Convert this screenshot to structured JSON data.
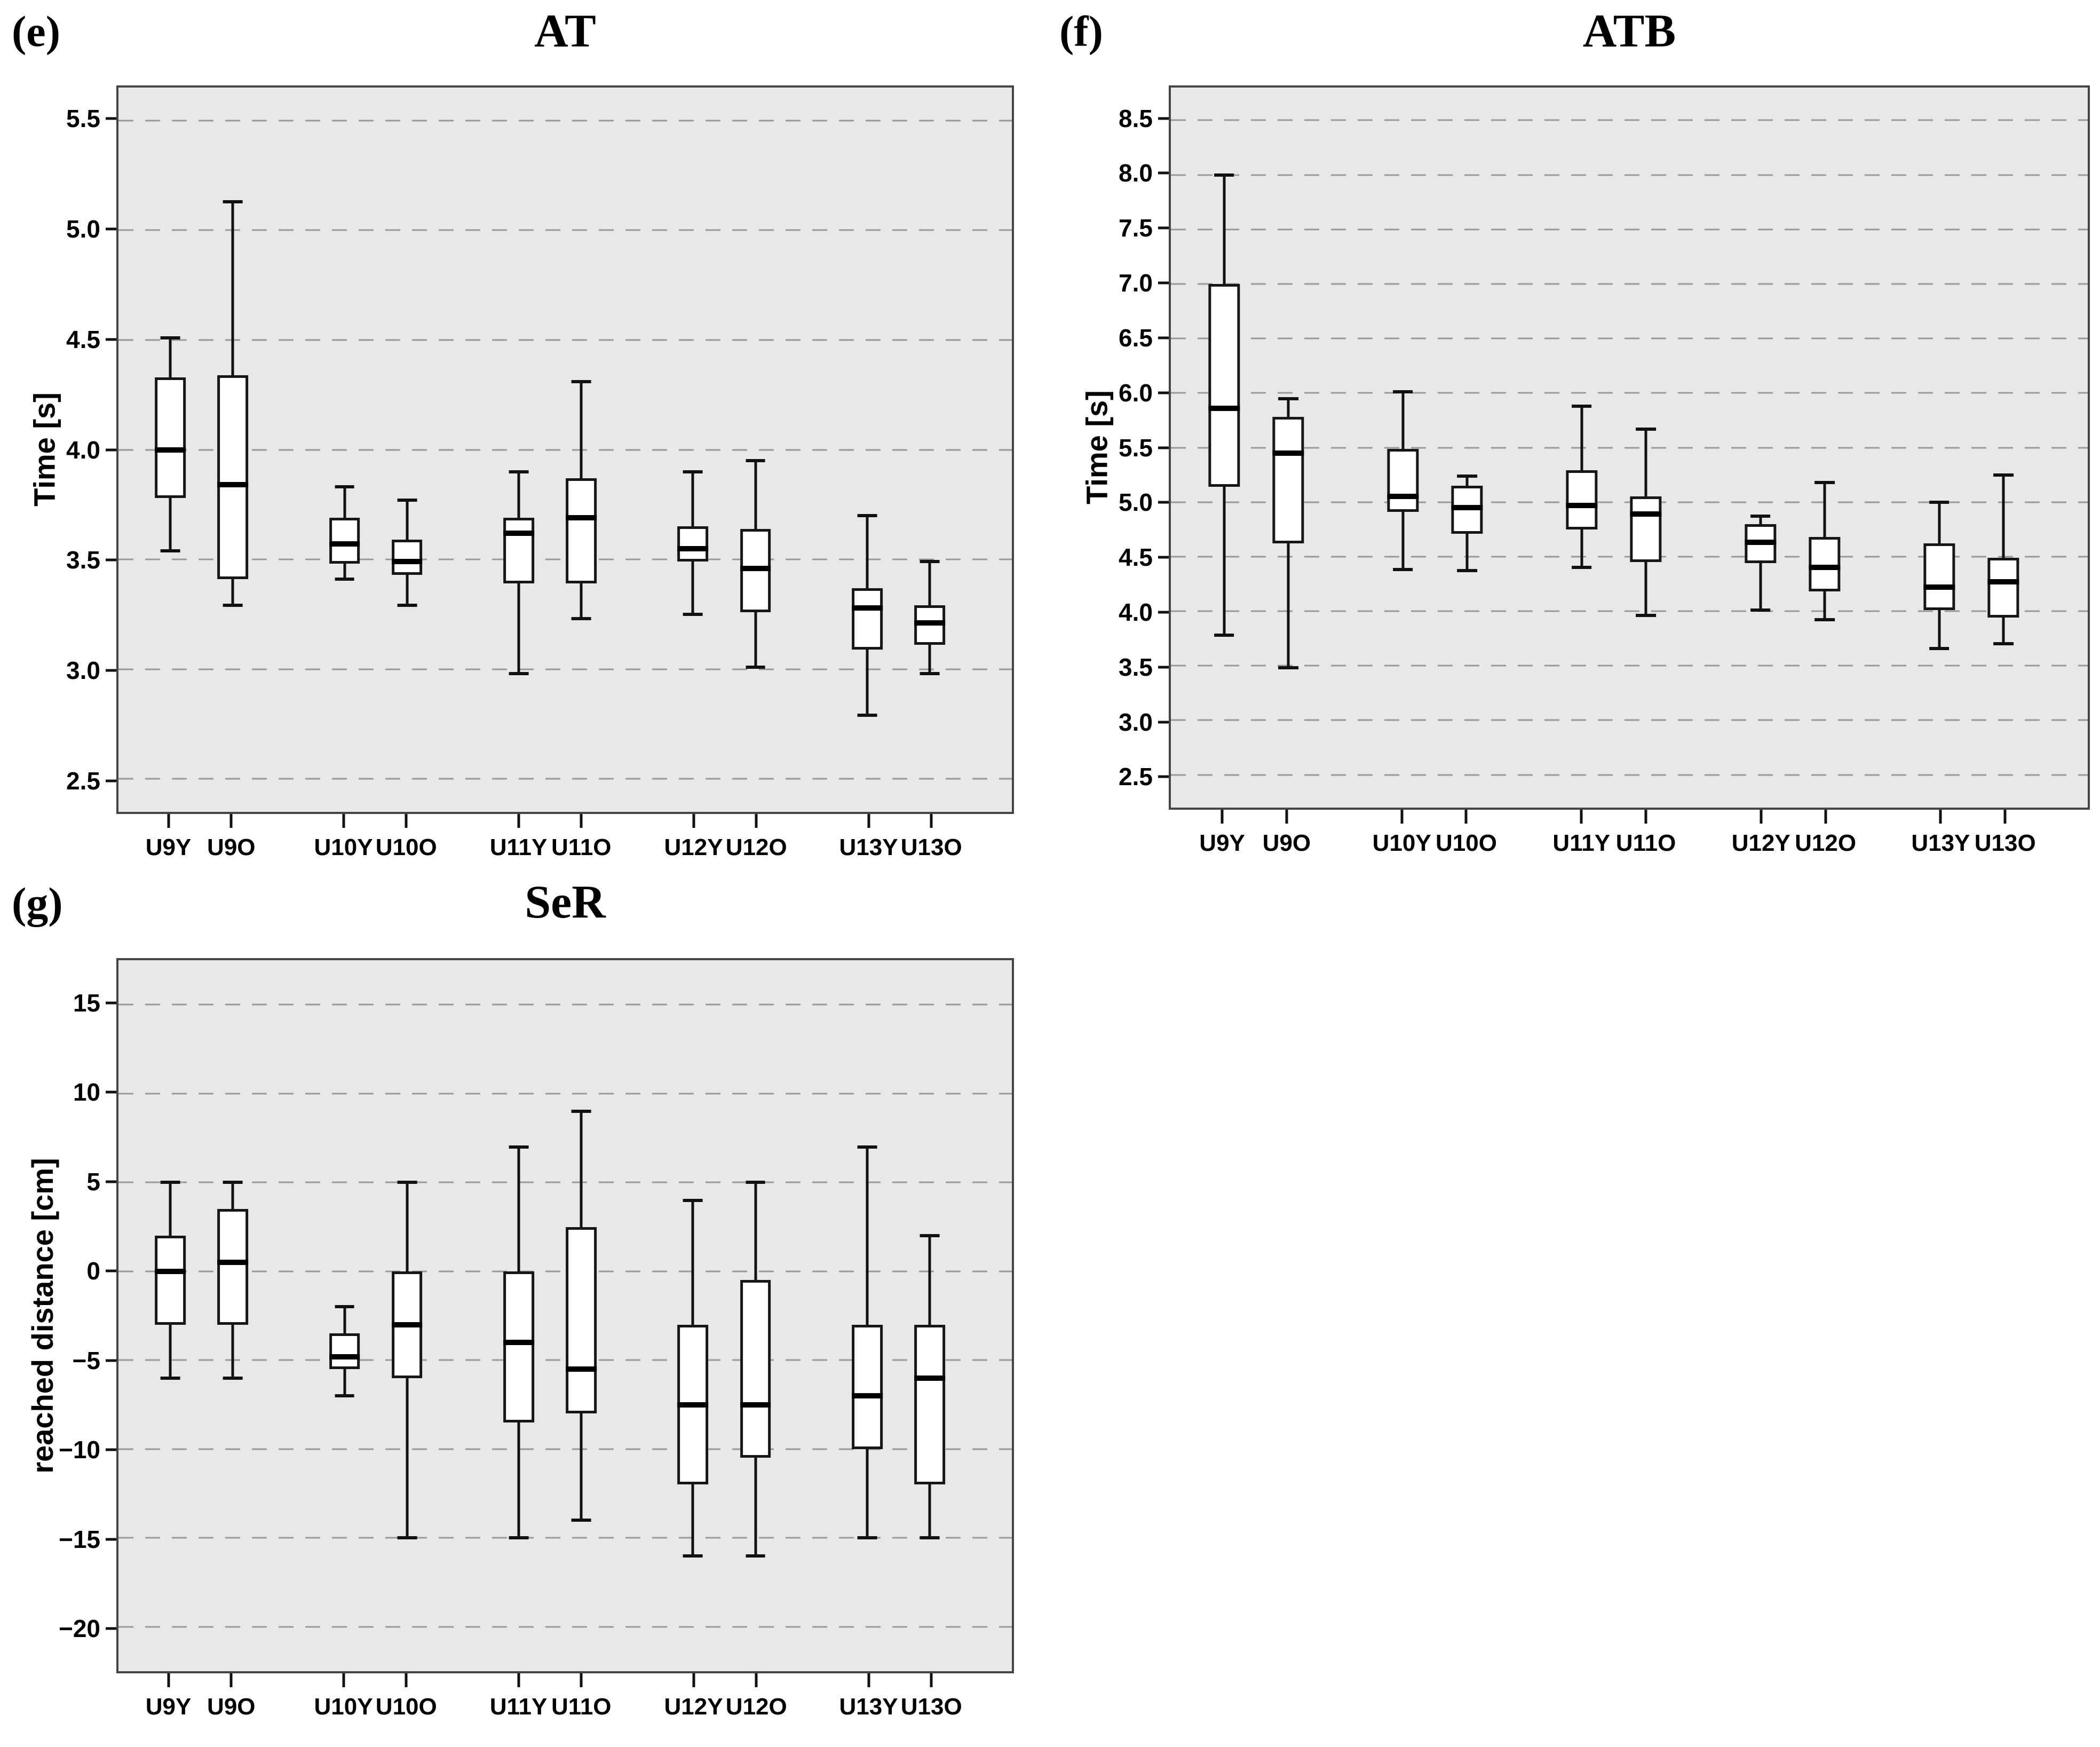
{
  "figure": {
    "background": "#ffffff",
    "plot_background": "#e8e8e8",
    "gridline_color": "#9a9a9a",
    "box_fill": "#ffffff",
    "line_color": "#111111"
  },
  "chart_data": [
    {
      "key": "e",
      "type": "boxplot",
      "panel_label": "(e)",
      "title": "AT",
      "ylabel": "Time [s]",
      "ylim": [
        2.35,
        5.65
      ],
      "grid": "horizontal-dashed",
      "ytick_values": [
        5.5,
        5.0,
        4.5,
        4.0,
        3.5,
        3.0,
        2.5
      ],
      "ytick_labels": [
        "5.5",
        "5.0",
        "4.5",
        "4.0",
        "3.5",
        "3.0",
        "2.5"
      ],
      "categories": [
        "U9Y",
        "U9O",
        "U10Y",
        "U10O",
        "U11Y",
        "U11O",
        "U12Y",
        "U12O",
        "U13Y",
        "U13O"
      ],
      "boxes": [
        {
          "category": "U9Y",
          "whisker_low": 3.54,
          "q1": 3.78,
          "median": 4.0,
          "q3": 4.33,
          "whisker_high": 4.51
        },
        {
          "category": "U9O",
          "whisker_low": 3.29,
          "q1": 3.41,
          "median": 3.84,
          "q3": 4.34,
          "whisker_high": 5.13
        },
        {
          "category": "U10Y",
          "whisker_low": 3.41,
          "q1": 3.48,
          "median": 3.57,
          "q3": 3.69,
          "whisker_high": 3.83
        },
        {
          "category": "U10O",
          "whisker_low": 3.29,
          "q1": 3.43,
          "median": 3.49,
          "q3": 3.59,
          "whisker_high": 3.77
        },
        {
          "category": "U11Y",
          "whisker_low": 2.98,
          "q1": 3.39,
          "median": 3.62,
          "q3": 3.69,
          "whisker_high": 3.9
        },
        {
          "category": "U11O",
          "whisker_low": 3.23,
          "q1": 3.39,
          "median": 3.69,
          "q3": 3.87,
          "whisker_high": 4.31
        },
        {
          "category": "U12Y",
          "whisker_low": 3.25,
          "q1": 3.49,
          "median": 3.55,
          "q3": 3.65,
          "whisker_high": 3.9
        },
        {
          "category": "U12O",
          "whisker_low": 3.01,
          "q1": 3.26,
          "median": 3.46,
          "q3": 3.64,
          "whisker_high": 3.95
        },
        {
          "category": "U13Y",
          "whisker_low": 2.79,
          "q1": 3.09,
          "median": 3.28,
          "q3": 3.37,
          "whisker_high": 3.7
        },
        {
          "category": "U13O",
          "whisker_low": 2.98,
          "q1": 3.11,
          "median": 3.21,
          "q3": 3.29,
          "whisker_high": 3.49
        }
      ]
    },
    {
      "key": "f",
      "type": "boxplot",
      "panel_label": "(f)",
      "title": "ATB",
      "ylabel": "Time [s]",
      "ylim": [
        2.2,
        8.8
      ],
      "grid": "horizontal-dashed",
      "ytick_values": [
        8.5,
        8.0,
        7.5,
        7.0,
        6.5,
        6.0,
        5.5,
        5.0,
        4.5,
        4.0,
        3.5,
        3.0,
        2.5
      ],
      "ytick_labels": [
        "8.5",
        "8.0",
        "7.5",
        "7.0",
        "6.5",
        "6.0",
        "5.5",
        "5.0",
        "4.5",
        "4.0",
        "3.5",
        "3.0",
        "2.5"
      ],
      "categories": [
        "U9Y",
        "U9O",
        "U10Y",
        "U10O",
        "U11Y",
        "U11O",
        "U12Y",
        "U12O",
        "U13Y",
        "U13O"
      ],
      "boxes": [
        {
          "category": "U9Y",
          "whisker_low": 3.78,
          "q1": 5.14,
          "median": 5.86,
          "q3": 7.0,
          "whisker_high": 8.0
        },
        {
          "category": "U9O",
          "whisker_low": 3.48,
          "q1": 4.62,
          "median": 5.45,
          "q3": 5.78,
          "whisker_high": 5.95
        },
        {
          "category": "U10Y",
          "whisker_low": 4.38,
          "q1": 4.91,
          "median": 5.05,
          "q3": 5.49,
          "whisker_high": 6.01
        },
        {
          "category": "U10O",
          "whisker_low": 4.37,
          "q1": 4.71,
          "median": 4.95,
          "q3": 5.15,
          "whisker_high": 5.24
        },
        {
          "category": "U11Y",
          "whisker_low": 4.4,
          "q1": 4.75,
          "median": 4.97,
          "q3": 5.29,
          "whisker_high": 5.88
        },
        {
          "category": "U11O",
          "whisker_low": 3.96,
          "q1": 4.45,
          "median": 4.89,
          "q3": 5.05,
          "whisker_high": 5.67
        },
        {
          "category": "U12Y",
          "whisker_low": 4.01,
          "q1": 4.44,
          "median": 4.63,
          "q3": 4.8,
          "whisker_high": 4.87
        },
        {
          "category": "U12O",
          "whisker_low": 3.92,
          "q1": 4.18,
          "median": 4.4,
          "q3": 4.68,
          "whisker_high": 5.18
        },
        {
          "category": "U13Y",
          "whisker_low": 3.66,
          "q1": 4.01,
          "median": 4.22,
          "q3": 4.62,
          "whisker_high": 5.0
        },
        {
          "category": "U13O",
          "whisker_low": 3.7,
          "q1": 3.94,
          "median": 4.27,
          "q3": 4.49,
          "whisker_high": 5.25
        }
      ]
    },
    {
      "key": "g",
      "type": "boxplot",
      "panel_label": "(g)",
      "title": "SeR",
      "ylabel": "reached distance [cm]",
      "ylim": [
        -22.5,
        17.5
      ],
      "grid": "horizontal-dashed",
      "ytick_values": [
        15,
        10,
        5,
        0,
        -5,
        -10,
        -15,
        -20
      ],
      "ytick_labels": [
        "15",
        "10",
        "5",
        "0",
        "−5",
        "−10",
        "−15",
        "−20"
      ],
      "categories": [
        "U9Y",
        "U9O",
        "U10Y",
        "U10O",
        "U11Y",
        "U11O",
        "U12Y",
        "U12O",
        "U13Y",
        "U13O"
      ],
      "boxes": [
        {
          "category": "U9Y",
          "whisker_low": -6,
          "q1": -3,
          "median": 0,
          "q3": 2,
          "whisker_high": 5
        },
        {
          "category": "U9O",
          "whisker_low": -6,
          "q1": -3,
          "median": 0.5,
          "q3": 3.5,
          "whisker_high": 5
        },
        {
          "category": "U10Y",
          "whisker_low": -7,
          "q1": -5.5,
          "median": -4.8,
          "q3": -3.5,
          "whisker_high": -2
        },
        {
          "category": "U10O",
          "whisker_low": -15,
          "q1": -6,
          "median": -3,
          "q3": 0,
          "whisker_high": 5
        },
        {
          "category": "U11Y",
          "whisker_low": -15,
          "q1": -8.5,
          "median": -4,
          "q3": 0,
          "whisker_high": 7
        },
        {
          "category": "U11O",
          "whisker_low": -14,
          "q1": -8,
          "median": -5.5,
          "q3": 2.5,
          "whisker_high": 9
        },
        {
          "category": "U12Y",
          "whisker_low": -16,
          "q1": -12,
          "median": -7.5,
          "q3": -3,
          "whisker_high": 4
        },
        {
          "category": "U12O",
          "whisker_low": -16,
          "q1": -10.5,
          "median": -7.5,
          "q3": -0.5,
          "whisker_high": 5
        },
        {
          "category": "U13Y",
          "whisker_low": -15,
          "q1": -10,
          "median": -7,
          "q3": -3,
          "whisker_high": 7
        },
        {
          "category": "U13O",
          "whisker_low": -15,
          "q1": -12,
          "median": -6,
          "q3": -3,
          "whisker_high": 2
        }
      ]
    }
  ]
}
